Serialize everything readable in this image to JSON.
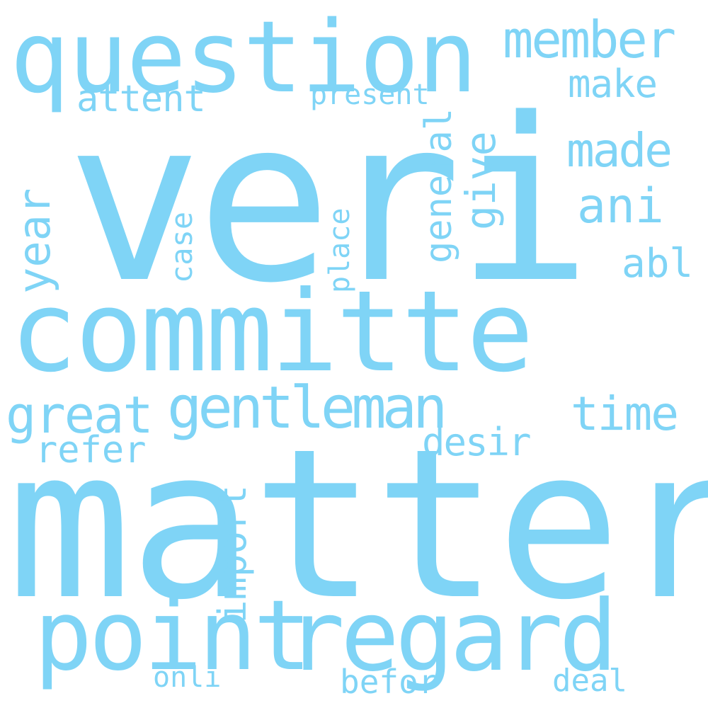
{
  "word_cloud": {
    "color": "#7fd4f6",
    "words": [
      "veri",
      "matter",
      "committe",
      "question",
      "point",
      "regard",
      "gentleman",
      "great",
      "member",
      "time",
      "made",
      "make",
      "ani",
      "abl",
      "desir",
      "attent",
      "present",
      "refer",
      "onli",
      "befor",
      "deal",
      "year",
      "general",
      "give",
      "import",
      "place",
      "case"
    ]
  }
}
